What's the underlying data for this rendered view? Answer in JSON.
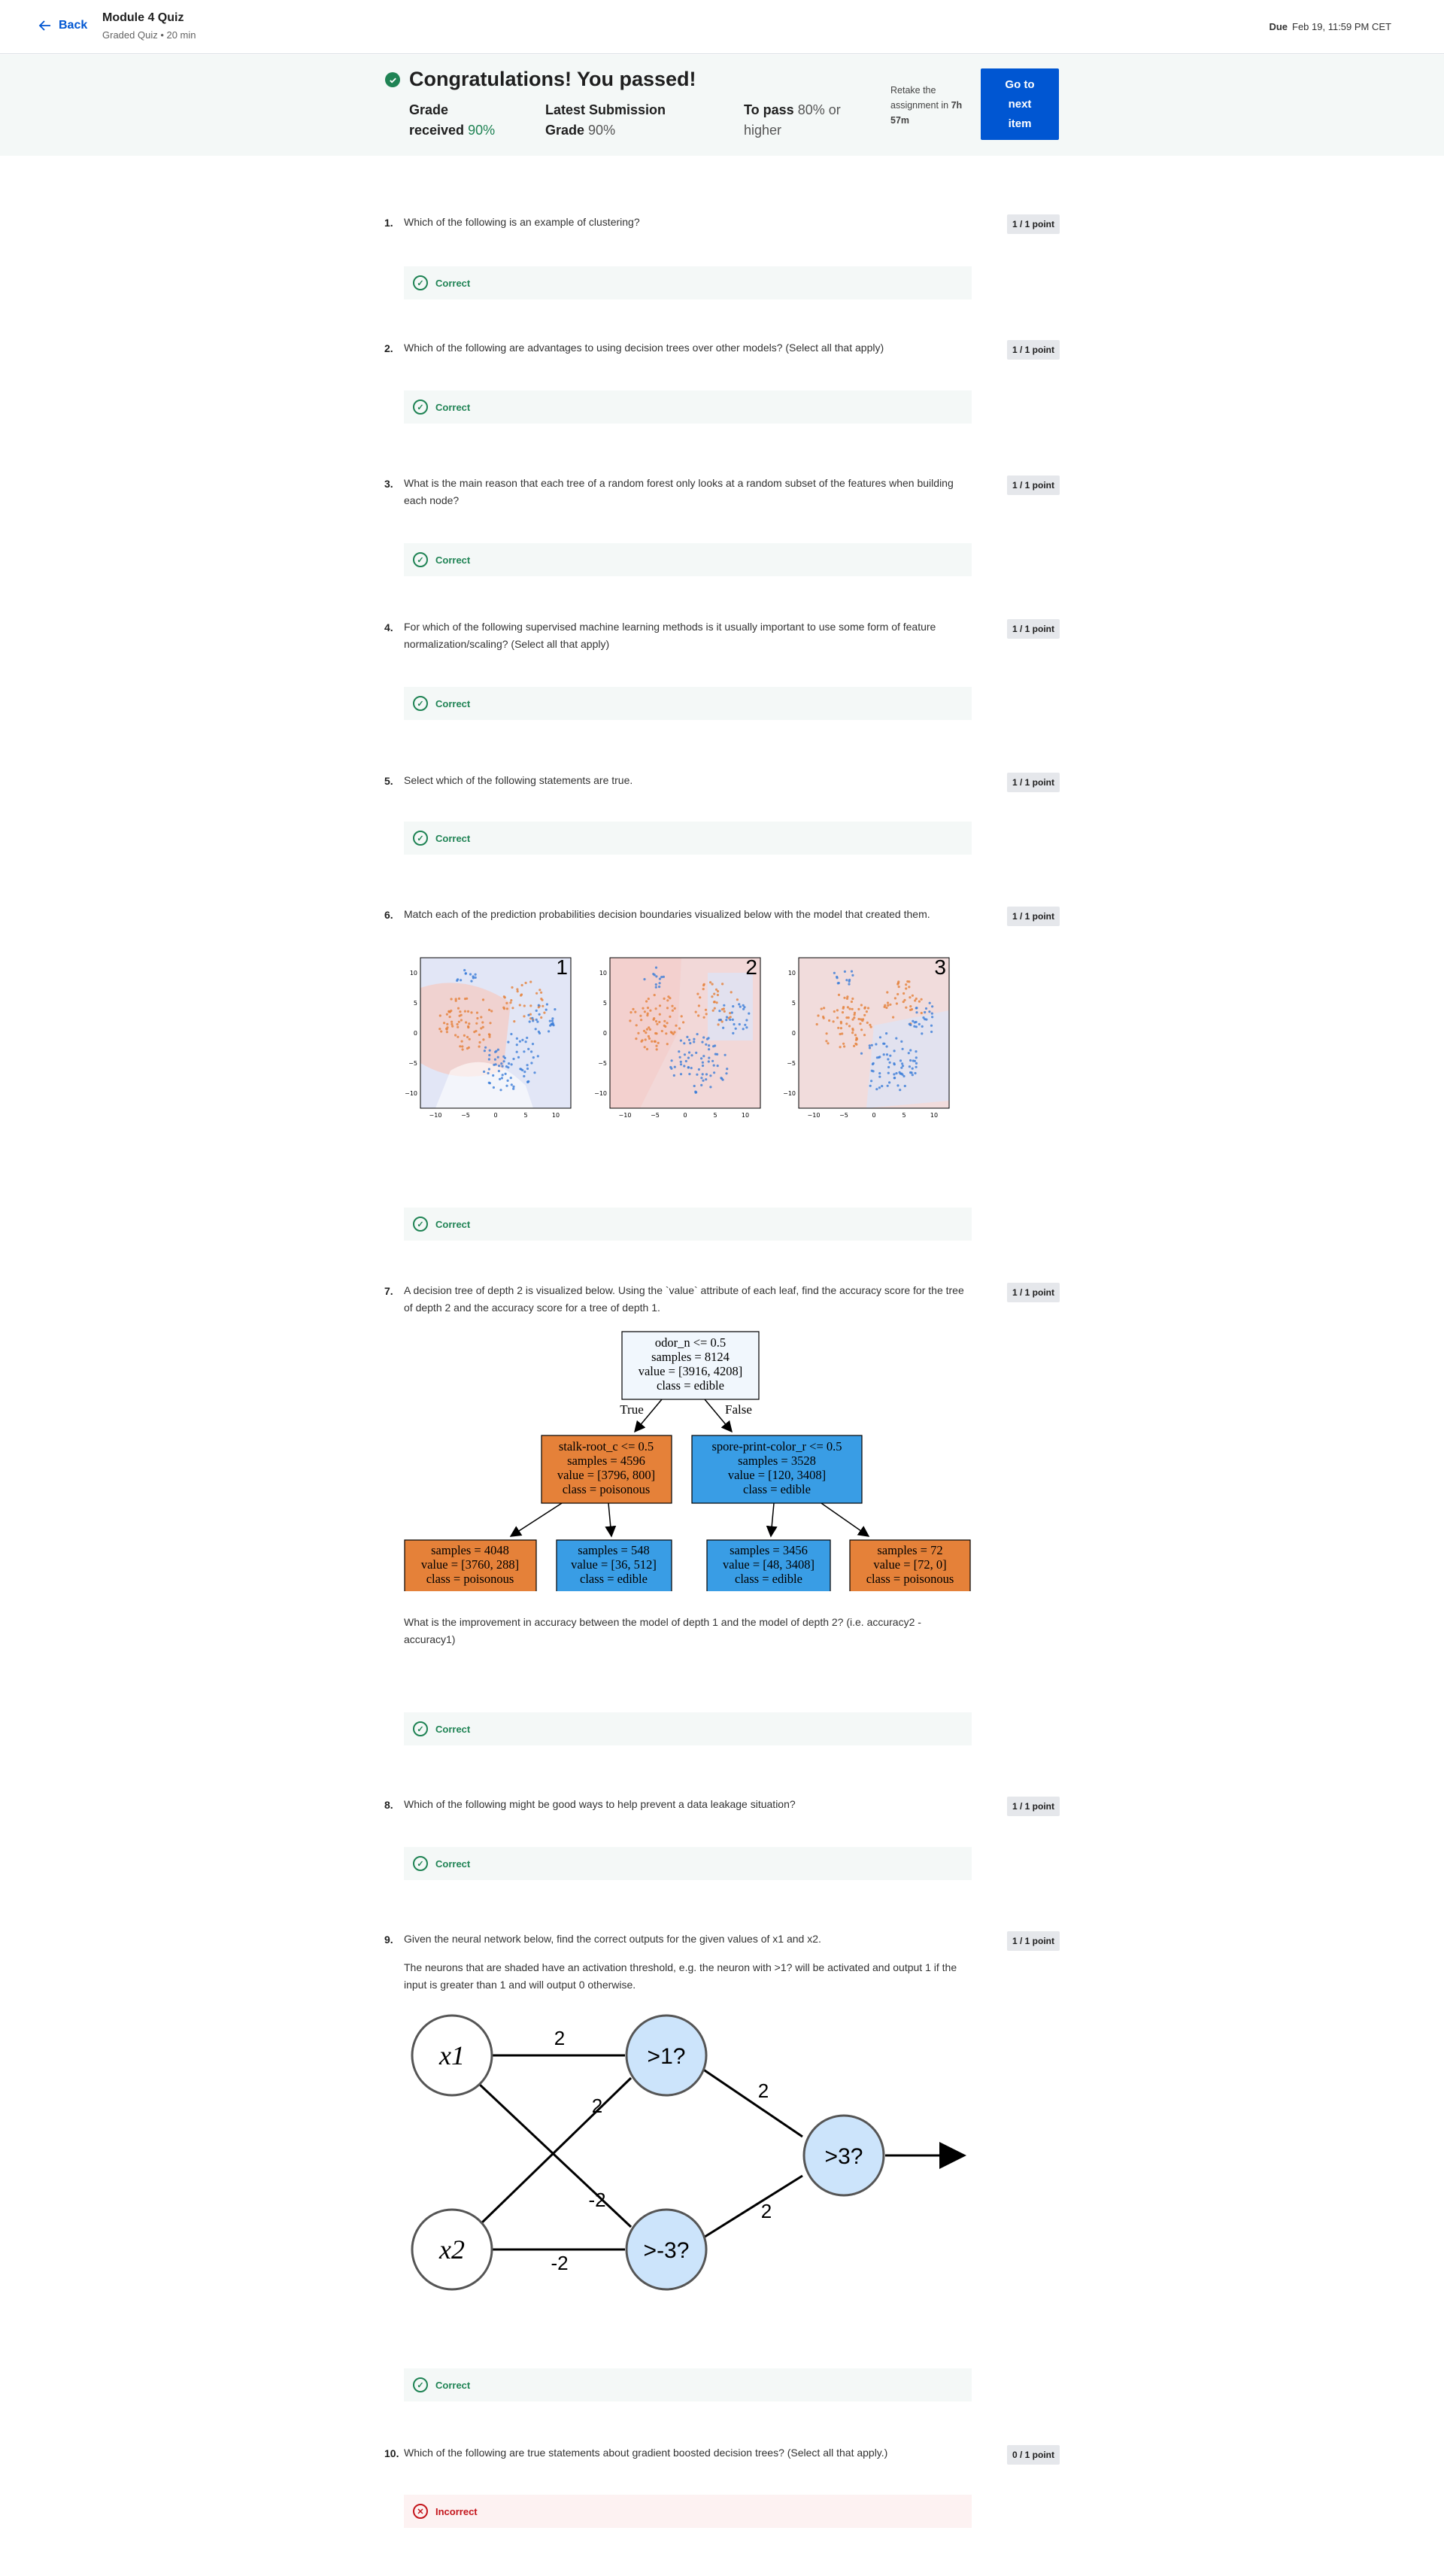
{
  "header": {
    "back_label": "Back",
    "module_title": "Module 4 Quiz",
    "module_sub": "Graded Quiz • 20 min",
    "due_label": "Due",
    "due_value": "Feb 19, 11:59 PM CET"
  },
  "banner": {
    "title": "Congratulations! You passed!",
    "grade_label": "Grade",
    "grade_label2": "received",
    "grade_value": "90%",
    "latest_label": "Latest Submission",
    "latest_label2": "Grade",
    "latest_value": "90%",
    "pass_label": "To pass",
    "pass_value": "80% or",
    "pass_value2": "higher",
    "retake_1": "Retake the",
    "retake_2": "assignment in",
    "retake_time": "7h",
    "retake_time2": "57m",
    "button_1": "Go to",
    "button_2": "next",
    "button_3": "item"
  },
  "questions": [
    {
      "num": "1.",
      "text": "Which of the following is an example of clustering?",
      "points": "1 / 1 point",
      "result": "Correct"
    },
    {
      "num": "2.",
      "text": "Which of the following are advantages to using decision trees over other models? (Select all that apply)",
      "points": "1 / 1 point",
      "result": "Correct"
    },
    {
      "num": "3.",
      "text": "What is the main reason that each tree of a random forest only looks at a random subset of the features when building each node?",
      "points": "1 / 1 point",
      "result": "Correct"
    },
    {
      "num": "4.",
      "text": "For which of the following supervised machine learning methods is it usually important to use some form of feature normalization/scaling? (Select all that apply)",
      "points": "1 / 1 point",
      "result": "Correct"
    },
    {
      "num": "5.",
      "text": "Select which of the following statements are true.",
      "points": "1 / 1 point",
      "result": "Correct"
    },
    {
      "num": "6.",
      "text": "Match each of the prediction probabilities decision boundaries visualized below with the model that created them.",
      "points": "1 / 1 point",
      "result": "Correct"
    },
    {
      "num": "7.",
      "text": "A decision tree of depth 2 is visualized below. Using the `value` attribute of each leaf, find the accuracy score for the tree of depth 2 and the accuracy score for a tree of depth 1.",
      "text2": "What is the improvement in accuracy between the model of depth 1 and the model of depth 2? (i.e. accuracy2 - accuracy1)",
      "points": "1 / 1 point",
      "result": "Correct"
    },
    {
      "num": "8.",
      "text": "Which of the following might be good ways to help prevent a data leakage situation?",
      "points": "1 / 1 point",
      "result": "Correct"
    },
    {
      "num": "9.",
      "text": "Given the neural network below, find the correct outputs for the given values of x1 and x2.",
      "text2": "The neurons that are shaded have an activation threshold, e.g. the neuron with >1? will be activated and output 1 if the input is greater than 1 and will output 0 otherwise.",
      "points": "1 / 1 point",
      "result": "Correct"
    },
    {
      "num": "10.",
      "text": "Which of the following are true statements about gradient boosted decision trees? (Select all that apply.)",
      "points": "0 / 1 point",
      "result": "Incorrect"
    }
  ],
  "plots": {
    "labels": [
      "1",
      "2",
      "3"
    ],
    "y_ticks": [
      "10",
      "5",
      "0",
      "−5",
      "−10"
    ],
    "x_ticks": [
      "−10",
      "−5",
      "0",
      "5",
      "10"
    ]
  },
  "tree": {
    "root": [
      "odor_n <= 0.5",
      "samples = 8124",
      "value = [3916, 4208]",
      "class = edible"
    ],
    "true_label": "True",
    "false_label": "False",
    "left": [
      "stalk-root_c <= 0.5",
      "samples = 4596",
      "value = [3796, 800]",
      "class = poisonous"
    ],
    "right": [
      "spore-print-color_r <= 0.5",
      "samples = 3528",
      "value = [120, 3408]",
      "class = edible"
    ],
    "leaves": [
      [
        "samples = 4048",
        "value = [3760, 288]",
        "class = poisonous"
      ],
      [
        "samples = 548",
        "value = [36, 512]",
        "class = edible"
      ],
      [
        "samples = 3456",
        "value = [48, 3408]",
        "class = edible"
      ],
      [
        "samples = 72",
        "value = [72, 0]",
        "class = poisonous"
      ]
    ],
    "colors": {
      "orange": "#e58139",
      "blue": "#399de5",
      "root": "#f1f7fd"
    }
  },
  "nn": {
    "x1": "x1",
    "x2": "x2",
    "h1": ">1?",
    "h2": ">-3?",
    "out": ">3?",
    "w_x1_h1": "2",
    "w_x2_h1": "2",
    "w_x1_h2": "-2",
    "w_x2_h2": "-2",
    "w_h1_out": "2",
    "w_h2_out": "2"
  },
  "colors": {
    "accent": "#0056d2",
    "correct": "#1f8354",
    "incorrect": "#c4161c",
    "neuron": "#cce4fb"
  }
}
